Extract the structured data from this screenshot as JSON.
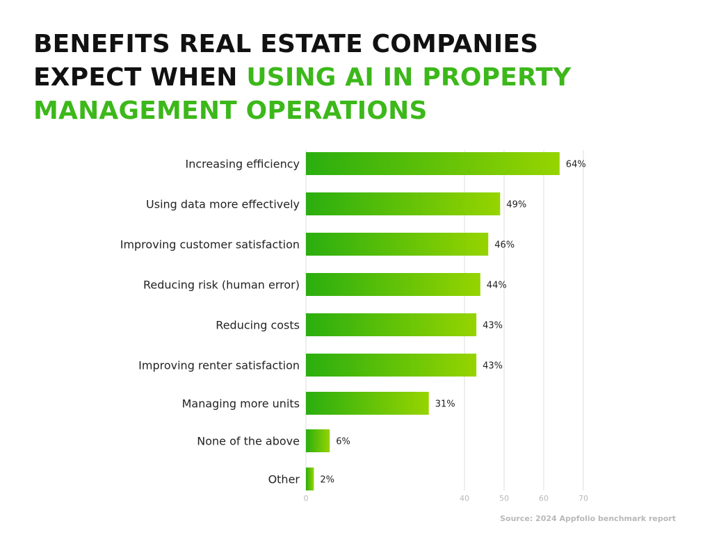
{
  "title": {
    "line1": "BENEFITS REAL ESTATE COMPANIES",
    "line2_dark": "EXPECT WHEN ",
    "line2_green": "USING AI IN PROPERTY",
    "line3_green": "MANAGEMENT OPERATIONS"
  },
  "source": "Source: 2024 Appfolio benchmark report",
  "colors": {
    "bar_start": "#2aae0f",
    "bar_end": "#96d400",
    "title_green": "#3cb81a",
    "grid": "#dcdcdc",
    "tick": "#b8b8b8",
    "label": "#222222"
  },
  "chart_data": {
    "type": "bar",
    "orientation": "horizontal",
    "categories": [
      "Increasing efficiency",
      "Using data more effectively",
      "Improving customer satisfaction",
      "Reducing risk (human error)",
      "Reducing costs",
      "Improving renter satisfaction",
      "Managing more units",
      "None of the above",
      "Other"
    ],
    "values": [
      64,
      49,
      46,
      44,
      43,
      43,
      31,
      6,
      2
    ],
    "value_labels": [
      "64%",
      "49%",
      "46%",
      "44%",
      "43%",
      "43%",
      "31%",
      "6%",
      "2%"
    ],
    "xlim": [
      0,
      70
    ],
    "xticks": [
      0,
      40,
      50,
      60,
      70
    ],
    "grid": true
  }
}
